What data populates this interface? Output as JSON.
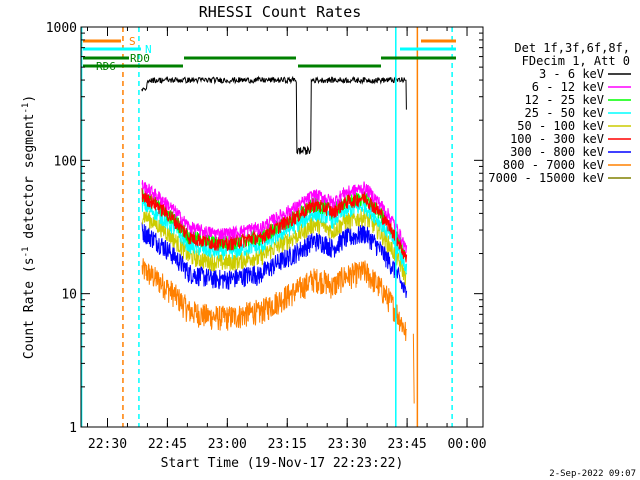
{
  "chart_data": {
    "type": "line",
    "title": "RHESSI Count Rates",
    "xlabel": "Start Time (19-Nov-17 22:23:22)",
    "ylabel_main": "Count Rate (s",
    "ylabel_sup1": "-1",
    "ylabel_mid": " detector segment",
    "ylabel_sup2": "-1",
    "ylabel_end": ")",
    "yscale": "log",
    "ylim": [
      1,
      1000
    ],
    "xlim_minutes": [
      "22:23:22",
      "00:04:00"
    ],
    "x_ticks": [
      "22:30",
      "22:45",
      "23:00",
      "23:15",
      "23:30",
      "23:45",
      "00:00"
    ],
    "y_ticks": [
      "1",
      "10",
      "100",
      "1000"
    ],
    "legend_header": [
      "Det 1f,3f,6f,8f,",
      "FDecim 1, Att 0"
    ],
    "legend_position": "right",
    "series": [
      {
        "name": "3 - 6 keV",
        "color": "#000000"
      },
      {
        "name": "6 - 12 keV",
        "color": "#ff00ff"
      },
      {
        "name": "12 - 25 keV",
        "color": "#00ff00"
      },
      {
        "name": "25 - 50 keV",
        "color": "#00ffff"
      },
      {
        "name": "50 - 100 keV",
        "color": "#cccc00"
      },
      {
        "name": "100 - 300 keV",
        "color": "#ff0000"
      },
      {
        "name": "300 - 800 keV",
        "color": "#0000ff"
      },
      {
        "name": "800 - 7000 keV",
        "color": "#ff8000"
      },
      {
        "name": "7000 - 15000 keV",
        "color": "#808000"
      }
    ],
    "annotations": {
      "s_label": "S",
      "n_label": "N",
      "rd0_label": "RD0",
      "rd6_label": "RD6"
    },
    "timestamp": "2-Sep-2022 09:07"
  }
}
